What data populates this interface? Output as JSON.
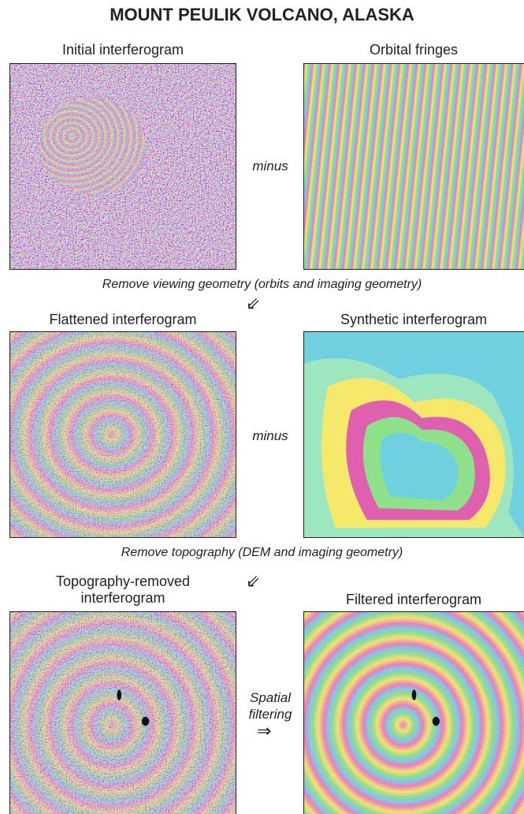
{
  "title": "MOUNT PEULIK VOLCANO, ALASKA",
  "rows": [
    {
      "left_label": "Initial interferogram",
      "operator": "minus",
      "right_label": "Orbital fringes",
      "caption": "Remove viewing geometry (orbits and imaging geometry)"
    },
    {
      "left_label": "Flattened interferogram",
      "operator": "minus",
      "right_label": "Synthetic interferogram",
      "caption": "Remove topography (DEM and imaging geometry)"
    },
    {
      "left_label": "Topography-removed interferogram",
      "operator": "Spatial filtering",
      "right_label": "Filtered interferogram"
    }
  ]
}
